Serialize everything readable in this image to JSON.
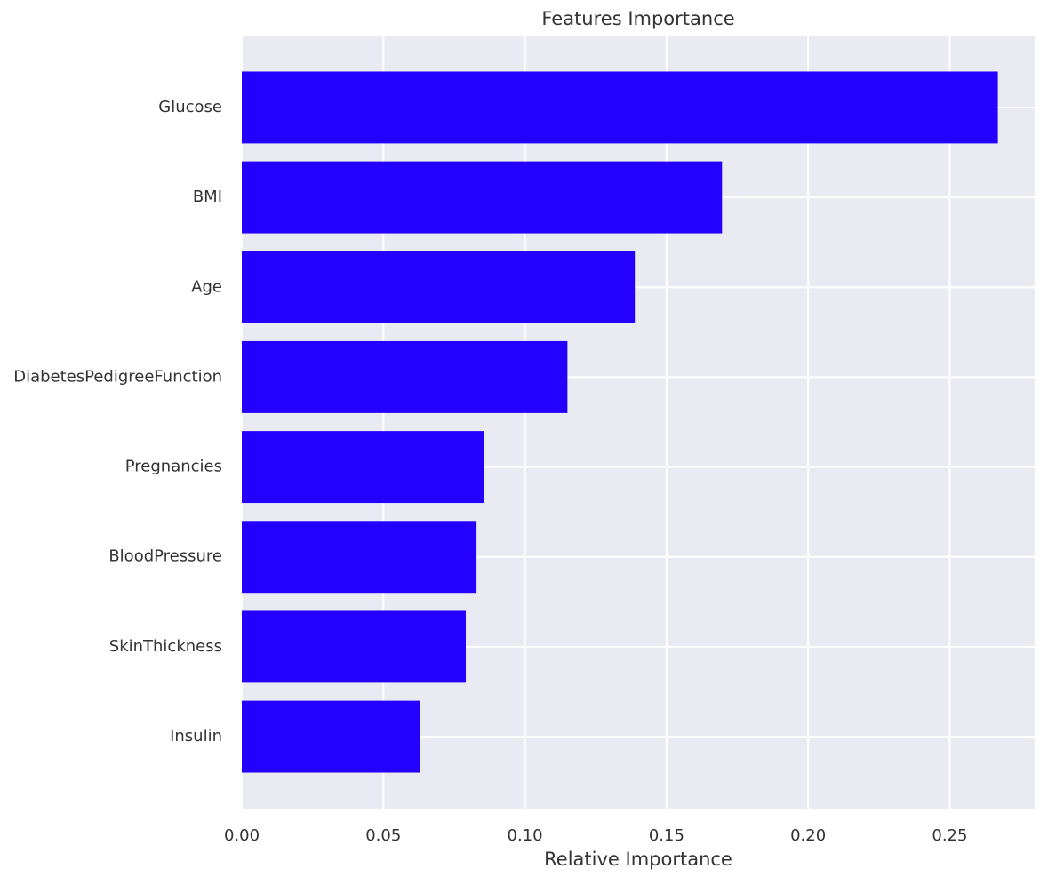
{
  "chart_data": {
    "type": "barh",
    "title": "Features Importance",
    "xlabel": "Relative Importance",
    "categories": [
      "Glucose",
      "BMI",
      "Age",
      "DiabetesPedigreeFunction",
      "Pregnancies",
      "BloodPressure",
      "SkinThickness",
      "Insulin"
    ],
    "values": [
      0.267,
      0.1696,
      0.1388,
      0.115,
      0.0854,
      0.0829,
      0.0791,
      0.0628
    ],
    "color": "#2400ff",
    "xlim": [
      0,
      0.28
    ],
    "xticks": [
      {
        "value": 0,
        "label": "0.00"
      },
      {
        "value": 0.05,
        "label": "0.05"
      },
      {
        "value": 0.1,
        "label": "0.10"
      },
      {
        "value": 0.15,
        "label": "0.15"
      },
      {
        "value": 0.2,
        "label": "0.20"
      },
      {
        "value": 0.25,
        "label": "0.25"
      }
    ],
    "grid": true
  }
}
